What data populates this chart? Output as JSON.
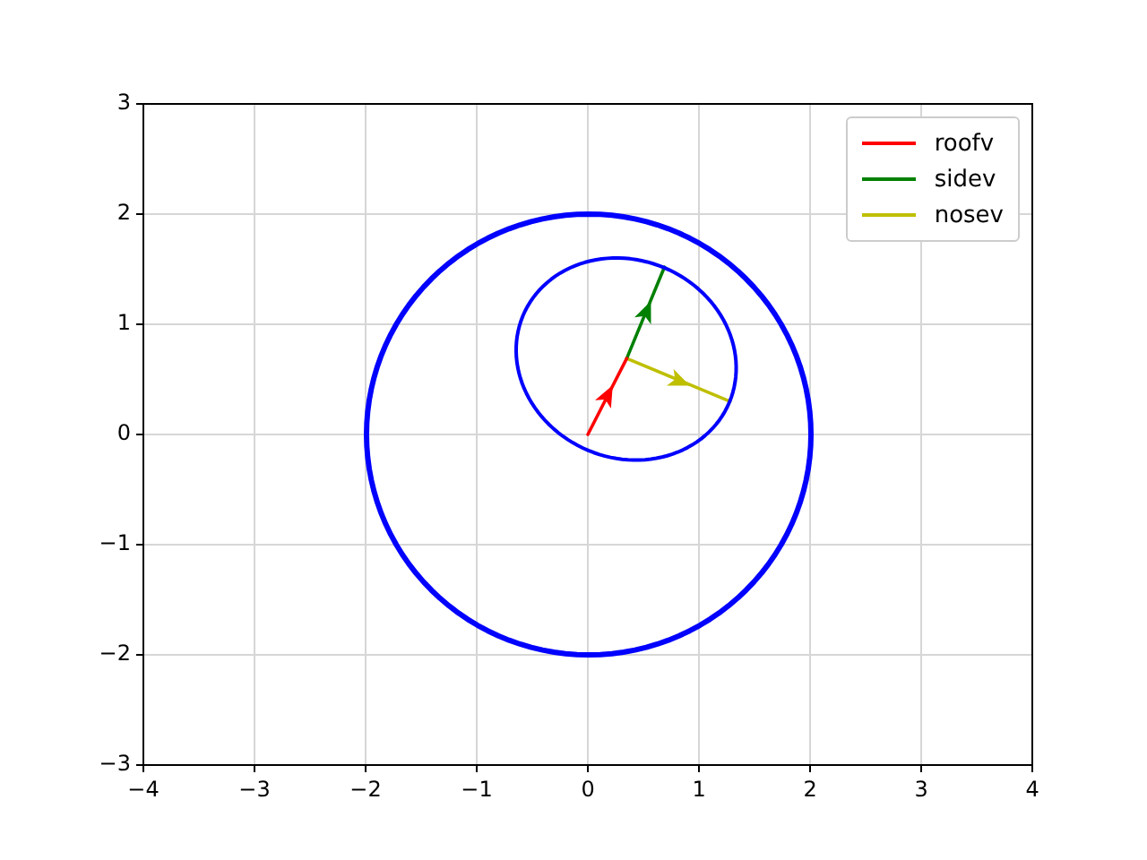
{
  "chart_data": {
    "type": "line",
    "xlim": [
      -4,
      4
    ],
    "ylim": [
      -3,
      3
    ],
    "xticks": [
      -4,
      -3,
      -2,
      -1,
      0,
      1,
      2,
      3,
      4
    ],
    "yticks": [
      -3,
      -2,
      -1,
      0,
      1,
      2,
      3
    ],
    "grid": true,
    "legend": "top right",
    "marker": "none",
    "line_style": "solid",
    "series": [
      {
        "name": "roofv",
        "color": "#ff0000",
        "x": [
          0,
          0.35
        ],
        "values": [
          0,
          0.69
        ]
      },
      {
        "name": "sidev",
        "color": "#008000",
        "x": [
          0.35,
          0.69
        ],
        "values": [
          0.69,
          1.52
        ]
      },
      {
        "name": "nosev",
        "color": "#bfbf00",
        "x": [
          0.35,
          1.28
        ],
        "values": [
          0.69,
          0.3
        ]
      }
    ]
  }
}
